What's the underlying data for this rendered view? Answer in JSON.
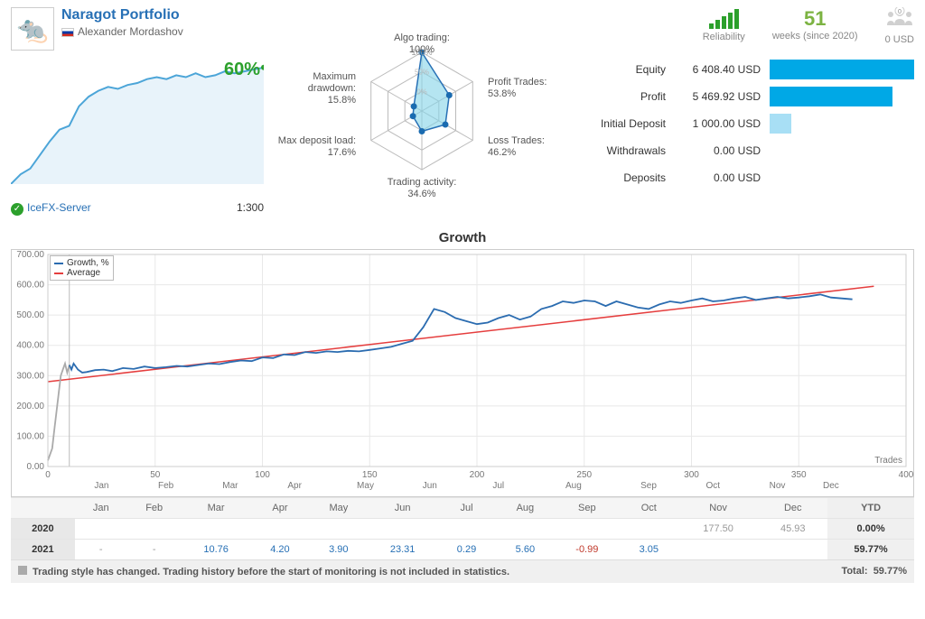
{
  "header": {
    "portfolio_name": "Naragot Portfolio",
    "author_name": "Alexander Mordashov",
    "percent_gain": "60%",
    "server_name": "IceFX-Server",
    "leverage": "1:300"
  },
  "mini_chart": {
    "color": "#2ca02c",
    "fill": "#e8f3fa",
    "stroke": "#4ca5d8",
    "points": [
      0,
      5,
      8,
      15,
      22,
      28,
      30,
      40,
      45,
      48,
      50,
      49,
      51,
      52,
      54,
      55,
      54,
      56,
      55,
      57,
      55,
      56,
      58,
      57,
      58,
      59,
      60
    ],
    "ylim": [
      0,
      65
    ]
  },
  "radar": {
    "labels": {
      "top": "Algo trading: 100%",
      "tr": "Profit Trades: 53.8%",
      "br": "Loss Trades: 46.2%",
      "bottom": "Trading activity: 34.6%",
      "bl": "Max deposit load: 17.6%",
      "tl": "Maximum drawdown: 15.8%"
    },
    "values": [
      100,
      53.8,
      46.2,
      34.6,
      17.6,
      15.8
    ],
    "grid_color": "#bbb",
    "fill_color": "#84d4e8",
    "stroke_color": "#2770b5",
    "point_color": "#1a6bb0"
  },
  "top_metrics": {
    "reliability_label": "Reliability",
    "weeks_value": "51",
    "weeks_label": "weeks (since 2020)",
    "weeks_color": "#7cb342",
    "subscribers_value": "0",
    "subscribers_label": "0 USD"
  },
  "stats": {
    "rows": [
      {
        "label": "Equity",
        "value": "6 408.40 USD",
        "bar_pct": 100,
        "color": "#00a8e6"
      },
      {
        "label": "Profit",
        "value": "5 469.92 USD",
        "bar_pct": 85,
        "color": "#00a8e6"
      },
      {
        "label": "Initial Deposit",
        "value": "1 000.00 USD",
        "bar_pct": 15,
        "color": "#a8dff5"
      },
      {
        "label": "Withdrawals",
        "value": "0.00 USD",
        "bar_pct": 0,
        "color": "#00a8e6"
      },
      {
        "label": "Deposits",
        "value": "0.00 USD",
        "bar_pct": 0,
        "color": "#00a8e6"
      }
    ]
  },
  "growth_chart": {
    "title": "Growth",
    "xlabel": "Trades",
    "x_range": [
      0,
      400
    ],
    "x_ticks": [
      0,
      50,
      100,
      150,
      200,
      250,
      300,
      350,
      400
    ],
    "y_range": [
      0,
      700
    ],
    "y_ticks": [
      0,
      100,
      200,
      300,
      400,
      500,
      600,
      700
    ],
    "y_tick_labels": [
      "0.00",
      "100.00",
      "200.00",
      "300.00",
      "400.00",
      "500.00",
      "600.00",
      "700.00"
    ],
    "grid_color": "#e8e8e8",
    "border_color": "#cccccc",
    "growth_color": "#2b6cb0",
    "growth_pre_color": "#aaaaaa",
    "average_color": "#e53e3e",
    "legend": {
      "growth": "Growth, %",
      "average": "Average"
    },
    "months": [
      "Jan",
      "Feb",
      "Mar",
      "Apr",
      "May",
      "Jun",
      "Jul",
      "Aug",
      "Sep",
      "Oct",
      "Nov",
      "Dec"
    ],
    "month_ticks": [
      25,
      55,
      85,
      115,
      148,
      178,
      210,
      245,
      280,
      310,
      340,
      365
    ],
    "pre_start_x": 10,
    "avg_line": {
      "x1": 0,
      "y1": 280,
      "x2": 385,
      "y2": 595
    },
    "growth_data": [
      [
        0,
        20
      ],
      [
        2,
        60
      ],
      [
        3,
        120
      ],
      [
        4,
        180
      ],
      [
        5,
        240
      ],
      [
        6,
        300
      ],
      [
        7,
        320
      ],
      [
        8,
        340
      ],
      [
        9,
        310
      ],
      [
        10,
        335
      ],
      [
        11,
        320
      ],
      [
        12,
        340
      ],
      [
        14,
        320
      ],
      [
        16,
        310
      ],
      [
        18,
        312
      ],
      [
        22,
        318
      ],
      [
        26,
        320
      ],
      [
        30,
        315
      ],
      [
        35,
        325
      ],
      [
        40,
        322
      ],
      [
        45,
        330
      ],
      [
        50,
        325
      ],
      [
        55,
        328
      ],
      [
        60,
        332
      ],
      [
        65,
        330
      ],
      [
        70,
        335
      ],
      [
        75,
        340
      ],
      [
        80,
        338
      ],
      [
        85,
        345
      ],
      [
        90,
        350
      ],
      [
        95,
        348
      ],
      [
        100,
        360
      ],
      [
        105,
        358
      ],
      [
        110,
        370
      ],
      [
        115,
        368
      ],
      [
        120,
        378
      ],
      [
        125,
        375
      ],
      [
        130,
        380
      ],
      [
        135,
        378
      ],
      [
        140,
        382
      ],
      [
        145,
        380
      ],
      [
        150,
        385
      ],
      [
        155,
        390
      ],
      [
        160,
        395
      ],
      [
        165,
        405
      ],
      [
        170,
        415
      ],
      [
        175,
        460
      ],
      [
        180,
        520
      ],
      [
        185,
        510
      ],
      [
        190,
        490
      ],
      [
        195,
        480
      ],
      [
        200,
        470
      ],
      [
        205,
        475
      ],
      [
        210,
        490
      ],
      [
        215,
        500
      ],
      [
        220,
        485
      ],
      [
        225,
        495
      ],
      [
        230,
        520
      ],
      [
        235,
        530
      ],
      [
        240,
        545
      ],
      [
        245,
        540
      ],
      [
        250,
        548
      ],
      [
        255,
        545
      ],
      [
        260,
        530
      ],
      [
        265,
        545
      ],
      [
        270,
        535
      ],
      [
        275,
        525
      ],
      [
        280,
        520
      ],
      [
        285,
        535
      ],
      [
        290,
        545
      ],
      [
        295,
        540
      ],
      [
        300,
        548
      ],
      [
        305,
        555
      ],
      [
        310,
        545
      ],
      [
        315,
        548
      ],
      [
        320,
        555
      ],
      [
        325,
        560
      ],
      [
        330,
        550
      ],
      [
        335,
        555
      ],
      [
        340,
        560
      ],
      [
        345,
        555
      ],
      [
        350,
        558
      ],
      [
        355,
        562
      ],
      [
        360,
        568
      ],
      [
        365,
        558
      ],
      [
        370,
        555
      ],
      [
        375,
        552
      ]
    ]
  },
  "monthly": {
    "headers": [
      "",
      "Jan",
      "Feb",
      "Mar",
      "Apr",
      "May",
      "Jun",
      "Jul",
      "Aug",
      "Sep",
      "Oct",
      "Nov",
      "Dec",
      "YTD"
    ],
    "rows": [
      {
        "year": "2020",
        "cells": [
          "",
          "",
          "",
          "",
          "",
          "",
          "",
          "",
          "",
          "",
          "177.50",
          "45.93"
        ],
        "ytd": "0.00%"
      },
      {
        "year": "2021",
        "cells": [
          "-",
          "-",
          "10.76",
          "4.20",
          "3.90",
          "23.31",
          "0.29",
          "5.60",
          "-0.99",
          "3.05",
          "",
          ""
        ],
        "ytd": "59.77%"
      }
    ]
  },
  "footer": {
    "note": "Trading style has changed. Trading history before the start of monitoring is not included in statistics.",
    "total_label": "Total:",
    "total_value": "59.77%"
  }
}
